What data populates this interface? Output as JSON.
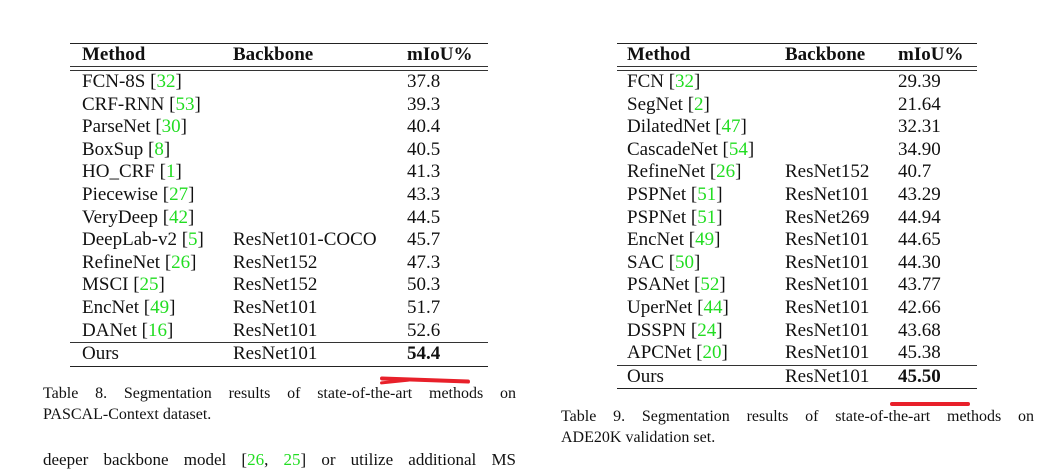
{
  "table8": {
    "headers": {
      "method": "Method",
      "backbone": "Backbone",
      "miou": "mIoU%"
    },
    "rows": [
      {
        "method": "FCN-8S",
        "cite": "32",
        "backbone": "",
        "miou": "37.8"
      },
      {
        "method": "CRF-RNN",
        "cite": "53",
        "backbone": "",
        "miou": "39.3"
      },
      {
        "method": "ParseNet",
        "cite": "30",
        "backbone": "",
        "miou": "40.4"
      },
      {
        "method": "BoxSup",
        "cite": "8",
        "backbone": "",
        "miou": "40.5"
      },
      {
        "method": "HO_CRF",
        "cite": "1",
        "backbone": "",
        "miou": "41.3"
      },
      {
        "method": "Piecewise",
        "cite": "27",
        "backbone": "",
        "miou": "43.3"
      },
      {
        "method": "VeryDeep",
        "cite": "42",
        "backbone": "",
        "miou": "44.5"
      },
      {
        "method": "DeepLab-v2",
        "cite": "5",
        "backbone": "ResNet101-COCO",
        "miou": "45.7"
      },
      {
        "method": "RefineNet",
        "cite": "26",
        "backbone": "ResNet152",
        "miou": "47.3"
      },
      {
        "method": "MSCI",
        "cite": "25",
        "backbone": "ResNet152",
        "miou": "50.3"
      },
      {
        "method": "EncNet",
        "cite": "49",
        "backbone": "ResNet101",
        "miou": "51.7"
      },
      {
        "method": "DANet",
        "cite": "16",
        "backbone": "ResNet101",
        "miou": "52.6"
      }
    ],
    "ours": {
      "method": "Ours",
      "backbone": "ResNet101",
      "miou": "54.4"
    },
    "caption_line1": "Table 8. Segmentation results of state-of-the-art methods on",
    "caption_line2": "PASCAL-Context dataset."
  },
  "table9": {
    "headers": {
      "method": "Method",
      "backbone": "Backbone",
      "miou": "mIoU%"
    },
    "rows": [
      {
        "method": "FCN",
        "cite": "32",
        "backbone": "",
        "miou": "29.39"
      },
      {
        "method": "SegNet",
        "cite": "2",
        "backbone": "",
        "miou": "21.64"
      },
      {
        "method": "DilatedNet",
        "cite": "47",
        "backbone": "",
        "miou": "32.31"
      },
      {
        "method": "CascadeNet",
        "cite": "54",
        "backbone": "",
        "miou": "34.90"
      },
      {
        "method": "RefineNet",
        "cite": "26",
        "backbone": "ResNet152",
        "miou": "40.7"
      },
      {
        "method": "PSPNet",
        "cite": "51",
        "backbone": "ResNet101",
        "miou": "43.29"
      },
      {
        "method": "PSPNet",
        "cite": "51",
        "backbone": "ResNet269",
        "miou": "44.94"
      },
      {
        "method": "EncNet",
        "cite": "49",
        "backbone": "ResNet101",
        "miou": "44.65"
      },
      {
        "method": "SAC",
        "cite": "50",
        "backbone": "ResNet101",
        "miou": "44.30"
      },
      {
        "method": "PSANet",
        "cite": "52",
        "backbone": "ResNet101",
        "miou": "43.77"
      },
      {
        "method": "UperNet",
        "cite": "44",
        "backbone": "ResNet101",
        "miou": "42.66"
      },
      {
        "method": "DSSPN",
        "cite": "24",
        "backbone": "ResNet101",
        "miou": "43.68"
      },
      {
        "method": "APCNet",
        "cite": "20",
        "backbone": "ResNet101",
        "miou": "45.38"
      }
    ],
    "ours": {
      "method": "Ours",
      "backbone": "ResNet101",
      "miou": "45.50"
    },
    "caption_line1": "Table 9. Segmentation results of state-of-the-art methods on",
    "caption_line2": "ADE20K validation set."
  },
  "body_text": {
    "before": "deeper backbone model [",
    "cite1": "26",
    "sep": ", ",
    "cite2": "25",
    "after": "] or utilize additional MS"
  },
  "colors": {
    "citation": "#22dd22",
    "annotation_mark": "#e8202a"
  }
}
